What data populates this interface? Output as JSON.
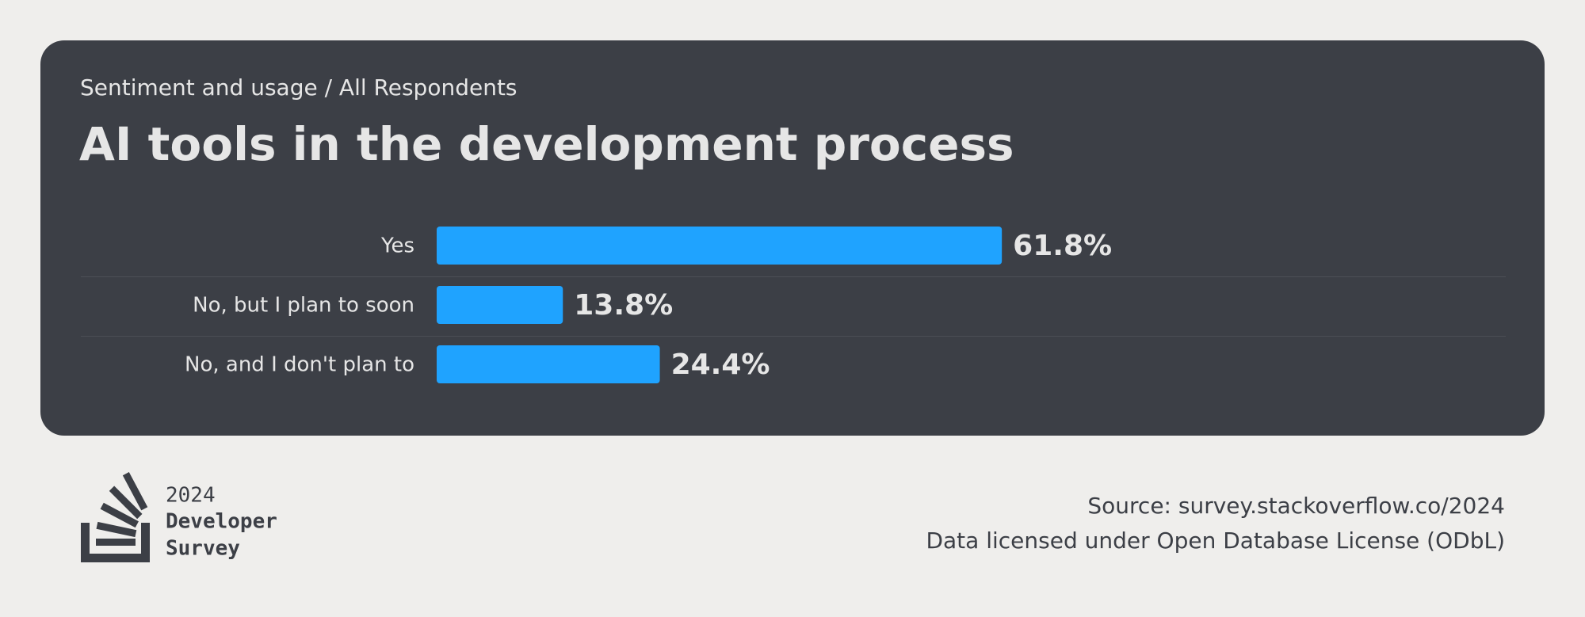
{
  "chart_data": {
    "type": "bar",
    "orientation": "horizontal",
    "subtitle": "Sentiment and usage / All Respondents",
    "title": "AI tools in the development process",
    "categories": [
      "Yes",
      "No, but I plan to soon",
      "No, and I don't plan to"
    ],
    "values": [
      61.8,
      13.8,
      24.4
    ],
    "value_labels": [
      "61.8%",
      "13.8%",
      "24.4%"
    ],
    "color": "#1fa3ff"
  },
  "footer": {
    "logo_lines": [
      "2024",
      "Developer",
      "Survey"
    ],
    "source": "Source: survey.stackoverflow.co/2024",
    "license": "Data licensed under Open Database License (ODbL)"
  }
}
